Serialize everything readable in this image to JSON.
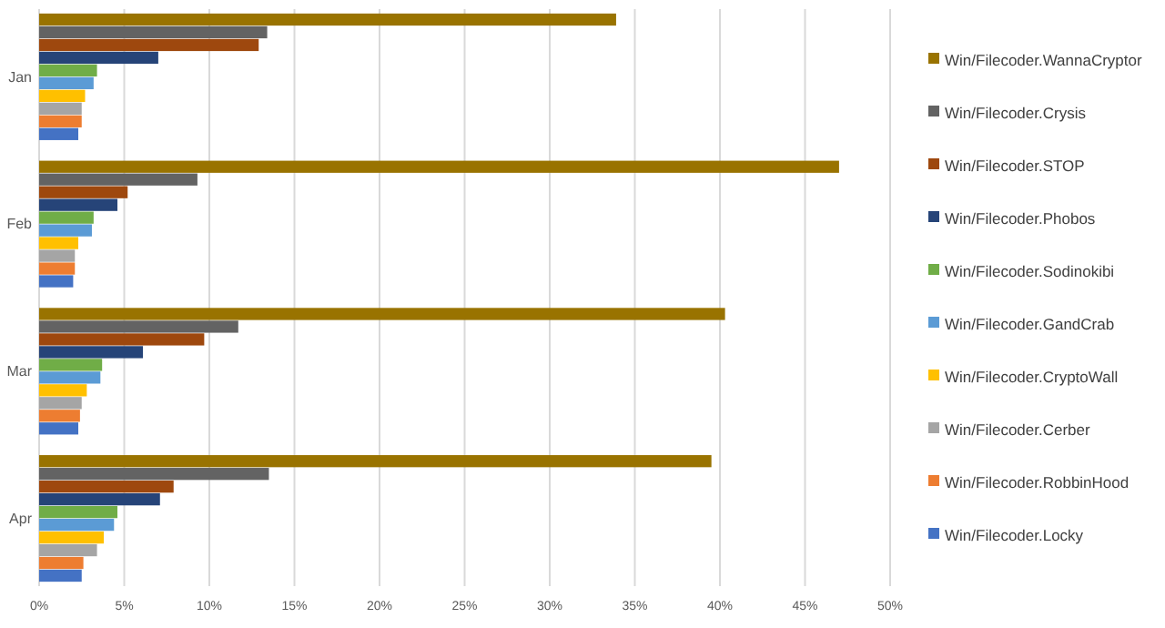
{
  "chart_data": {
    "type": "bar",
    "orientation": "horizontal",
    "categories": [
      "Jan",
      "Feb",
      "Mar",
      "Apr"
    ],
    "series": [
      {
        "name": "Win/Filecoder.WannaCryptor",
        "color": "#997300",
        "values": [
          33.9,
          47.0,
          40.3,
          39.5
        ]
      },
      {
        "name": "Win/Filecoder.Crysis",
        "color": "#636363",
        "values": [
          13.4,
          9.3,
          11.7,
          13.5
        ]
      },
      {
        "name": "Win/Filecoder.STOP",
        "color": "#9e480e",
        "values": [
          12.9,
          5.2,
          9.7,
          7.9
        ]
      },
      {
        "name": "Win/Filecoder.Phobos",
        "color": "#264478",
        "values": [
          7.0,
          4.6,
          6.1,
          7.1
        ]
      },
      {
        "name": "Win/Filecoder.Sodinokibi",
        "color": "#70ad47",
        "values": [
          3.4,
          3.2,
          3.7,
          4.6
        ]
      },
      {
        "name": "Win/Filecoder.GandCrab",
        "color": "#5b9bd5",
        "values": [
          3.2,
          3.1,
          3.6,
          4.4
        ]
      },
      {
        "name": "Win/Filecoder.CryptoWall",
        "color": "#ffc000",
        "values": [
          2.7,
          2.3,
          2.8,
          3.8
        ]
      },
      {
        "name": "Win/Filecoder.Cerber",
        "color": "#a5a5a5",
        "values": [
          2.5,
          2.1,
          2.5,
          3.4
        ]
      },
      {
        "name": "Win/Filecoder.RobbinHood",
        "color": "#ed7d31",
        "values": [
          2.5,
          2.1,
          2.4,
          2.6
        ]
      },
      {
        "name": "Win/Filecoder.Locky",
        "color": "#4472c4",
        "values": [
          2.3,
          2.0,
          2.3,
          2.5
        ]
      }
    ],
    "xlim": [
      0,
      50
    ],
    "xticks": [
      {
        "value": 0,
        "label": "0%"
      },
      {
        "value": 5,
        "label": "5%"
      },
      {
        "value": 10,
        "label": "10%"
      },
      {
        "value": 15,
        "label": "15%"
      },
      {
        "value": 20,
        "label": "20%"
      },
      {
        "value": 25,
        "label": "25%"
      },
      {
        "value": 30,
        "label": "30%"
      },
      {
        "value": 35,
        "label": "35%"
      },
      {
        "value": 40,
        "label": "40%"
      },
      {
        "value": 45,
        "label": "45%"
      },
      {
        "value": 50,
        "label": "50%"
      }
    ],
    "grid": "x",
    "legend": "right"
  }
}
